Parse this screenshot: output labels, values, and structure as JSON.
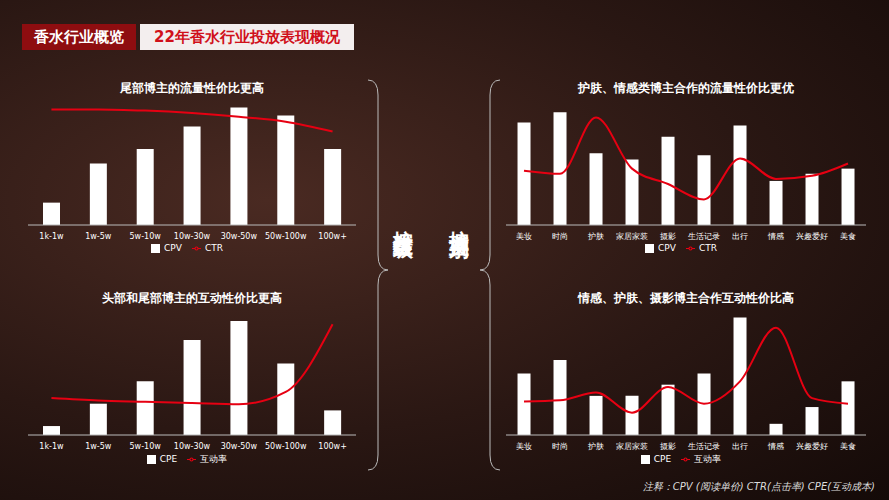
{
  "header": {
    "section": "香水行业概览",
    "title": "22年香水行业投放表现概况"
  },
  "side_labels": [
    "按粉丝量级",
    "按博主类别"
  ],
  "note": "注释：CPV (阅读单价)  CTR(点击率)  CPE(互动成本)",
  "chart_data": [
    {
      "type": "bar",
      "title": "尾部博主的流量性价比更高",
      "categories": [
        "1k-1w",
        "1w-5w",
        "5w-10w",
        "10w-30w",
        "30w-50w",
        "50w-100w",
        "100w+"
      ],
      "series": [
        {
          "name": "CPV",
          "type": "bar",
          "color": "#ffffff",
          "values": [
            20,
            55,
            68,
            88,
            105,
            98,
            68
          ]
        },
        {
          "name": "CTR",
          "type": "line",
          "color": "#e60012",
          "line_style": "solid",
          "axis": "y2",
          "values": [
            94,
            94,
            93,
            91,
            88,
            84,
            76
          ]
        }
      ],
      "ylim": [
        0,
        110
      ],
      "y2lim": [
        0,
        100
      ],
      "legend": "bottom",
      "tick_labels": "x",
      "grid": false
    },
    {
      "type": "bar",
      "title": "头部和尾部博主的互动性价比更高",
      "categories": [
        "1k-1w",
        "1w-5w",
        "5w-10w",
        "10w-30w",
        "30w-50w",
        "50w-100w",
        "100w+"
      ],
      "series": [
        {
          "name": "CPE",
          "type": "bar",
          "color": "#ffffff",
          "values": [
            8,
            28,
            48,
            85,
            102,
            64,
            22
          ]
        },
        {
          "name": "互动率",
          "type": "line",
          "color": "#e60012",
          "line_style": "solid",
          "axis": "y2",
          "values": [
            30,
            28,
            27,
            26,
            25,
            35,
            90
          ]
        }
      ],
      "ylim": [
        0,
        110
      ],
      "y2lim": [
        0,
        100
      ],
      "legend": "bottom",
      "tick_labels": "x",
      "grid": false
    },
    {
      "type": "bar",
      "title": "护肤、情感类博主合作的流量性价比更优",
      "categories": [
        "美妆",
        "时尚",
        "护肤",
        "家居家装",
        "摄影",
        "生活记录",
        "出行",
        "情感",
        "兴趣爱好",
        "美食"
      ],
      "series": [
        {
          "name": "CPV",
          "type": "bar",
          "color": "#ffffff",
          "values": [
            100,
            110,
            70,
            64,
            86,
            68,
            97,
            43,
            50,
            55
          ]
        },
        {
          "name": "CTR",
          "type": "line",
          "color": "#e60012",
          "line_style": "solid",
          "axis": "y2",
          "values": [
            53,
            50,
            105,
            55,
            40,
            25,
            65,
            45,
            48,
            60
          ]
        }
      ],
      "ylim": [
        0,
        120
      ],
      "y2lim": [
        0,
        120
      ],
      "legend": "bottom",
      "tick_labels": "x",
      "grid": false
    },
    {
      "type": "bar",
      "title": "情感、护肤、摄影博主合作互动性价比高",
      "categories": [
        "美妆",
        "时尚",
        "护肤",
        "家居家装",
        "摄影",
        "生活记录",
        "出行",
        "情感",
        "兴趣爱好",
        "美食"
      ],
      "series": [
        {
          "name": "CPE",
          "type": "bar",
          "color": "#ffffff",
          "values": [
            55,
            67,
            35,
            35,
            45,
            55,
            105,
            10,
            25,
            48
          ]
        },
        {
          "name": "互动率",
          "type": "line",
          "color": "#e60012",
          "line_style": "solid",
          "axis": "y2",
          "values": [
            30,
            31,
            38,
            20,
            43,
            28,
            48,
            96,
            33,
            28
          ]
        }
      ],
      "ylim": [
        0,
        110
      ],
      "y2lim": [
        0,
        110
      ],
      "legend": "bottom",
      "tick_labels": "x",
      "grid": false
    }
  ]
}
